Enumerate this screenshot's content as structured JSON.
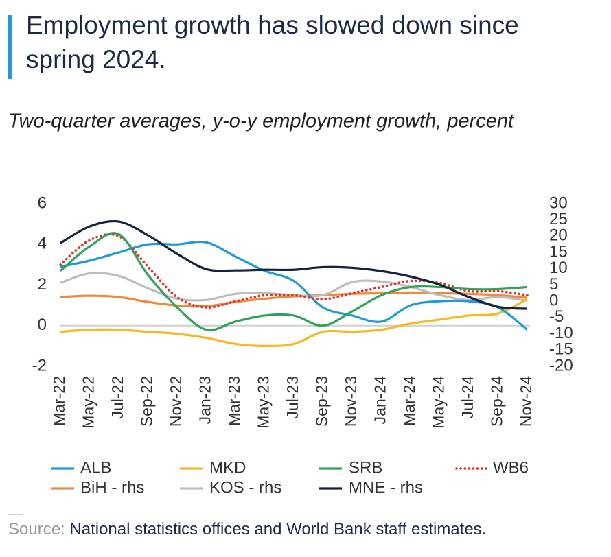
{
  "chart_data": {
    "type": "line",
    "title": "Employment growth has slowed down since spring 2024.",
    "subtitle": "Two-quarter averages, y-o-y employment growth, percent",
    "categories": [
      "Mar-22",
      "May-22",
      "Jul-22",
      "Sep-22",
      "Nov-22",
      "Jan-23",
      "Mar-23",
      "May-23",
      "Jul-23",
      "Sep-23",
      "Nov-23",
      "Jan-24",
      "Mar-24",
      "May-24",
      "Jul-24",
      "Sep-24",
      "Nov-24"
    ],
    "ylim": [
      -2,
      6
    ],
    "yticks": [
      -2,
      0,
      2,
      4,
      6
    ],
    "y2lim": [
      -20,
      30
    ],
    "y2ticks": [
      -20,
      -15,
      -10,
      -5,
      0,
      5,
      10,
      15,
      20,
      25,
      30
    ],
    "series": [
      {
        "name": "ALB",
        "color": "#1f9ad6",
        "values": [
          2.9,
          3.2,
          3.6,
          4.0,
          4.0,
          4.1,
          3.4,
          2.7,
          2.2,
          0.9,
          0.5,
          0.2,
          1.0,
          1.2,
          1.2,
          0.9,
          -0.2
        ]
      },
      {
        "name": "MKD",
        "color": "#f5b921",
        "values": [
          -0.3,
          -0.2,
          -0.2,
          -0.3,
          -0.4,
          -0.6,
          -0.9,
          -1.0,
          -0.9,
          -0.3,
          -0.3,
          -0.2,
          0.1,
          0.3,
          0.5,
          0.6,
          1.3
        ]
      },
      {
        "name": "SRB",
        "color": "#2ea35a",
        "values": [
          2.7,
          3.9,
          4.5,
          2.5,
          0.9,
          -0.2,
          0.2,
          0.5,
          0.5,
          0.0,
          0.7,
          1.5,
          1.9,
          1.9,
          1.8,
          1.8,
          1.9
        ]
      },
      {
        "name": "WB6",
        "color": "#e0312b",
        "style": "dotted",
        "values": [
          3.0,
          4.2,
          4.4,
          2.9,
          1.4,
          0.9,
          1.2,
          1.5,
          1.5,
          1.3,
          1.6,
          1.9,
          2.2,
          2.1,
          1.7,
          1.7,
          1.5
        ]
      },
      {
        "name": "BiH - rhs",
        "color": "#f0893a",
        "axis": "y2",
        "values": [
          1.3,
          1.7,
          1.3,
          -0.2,
          -1.3,
          -1.5,
          -0.2,
          0.8,
          1.5,
          1.9,
          2.3,
          2.5,
          2.7,
          2.5,
          2.3,
          1.9,
          1.1
        ]
      },
      {
        "name": "KOS - rhs",
        "color": "#bdbdbd",
        "axis": "y2",
        "values": [
          5.7,
          8.6,
          7.8,
          4.0,
          0.8,
          0.4,
          2.3,
          2.5,
          1.9,
          1.9,
          5.9,
          6.1,
          4.4,
          1.9,
          0.4,
          1.3,
          0.2
        ]
      },
      {
        "name": "MNE - rhs",
        "color": "#12223f",
        "axis": "y2",
        "values": [
          17.9,
          23.0,
          24.5,
          20.3,
          14.6,
          9.9,
          9.5,
          9.7,
          9.7,
          10.5,
          10.3,
          9.3,
          7.6,
          5.1,
          1.3,
          -1.7,
          -2.3
        ]
      }
    ],
    "source": {
      "label": "Source:",
      "text": "National statistics offices and World Bank staff estimates."
    }
  }
}
